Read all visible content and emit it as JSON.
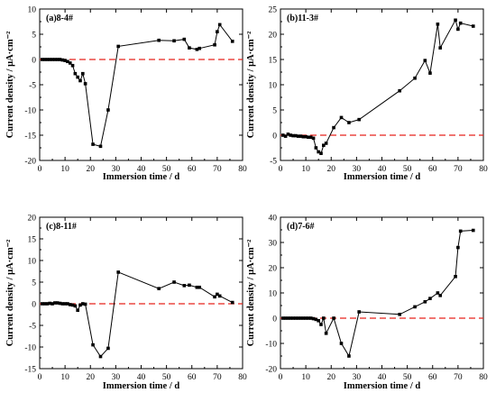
{
  "chart_data": [
    {
      "type": "line",
      "panel_label": "(a)8-4#",
      "xlabel": "Immersion time / d",
      "ylabel": "Current density / μA·cm⁻²",
      "xlim": [
        0,
        80
      ],
      "ylim": [
        -20,
        10
      ],
      "xticks": [
        0,
        10,
        20,
        30,
        40,
        50,
        60,
        70,
        80
      ],
      "yticks": [
        -20,
        -15,
        -10,
        -5,
        0,
        5,
        10
      ],
      "reference_line": {
        "y": 0,
        "color": "#e8231c",
        "style": "dashed"
      },
      "series": [
        {
          "color": "#000000",
          "marker": "square",
          "x": [
            1,
            2,
            3,
            4,
            5,
            6,
            7,
            8,
            9,
            10,
            11,
            12,
            13,
            14,
            15,
            16,
            17,
            18,
            21,
            24,
            27,
            31,
            47,
            53,
            57,
            59,
            62,
            63,
            69,
            70,
            71,
            76
          ],
          "y": [
            0,
            0,
            0,
            0,
            0,
            0,
            0,
            0,
            -0.1,
            -0.2,
            -0.4,
            -0.7,
            -1.2,
            -2.8,
            -3.5,
            -4.2,
            -2.8,
            -4.8,
            -16.8,
            -17.2,
            -10,
            2.6,
            3.8,
            3.7,
            4.0,
            2.3,
            2.0,
            2.2,
            2.9,
            5.5,
            6.9,
            3.6
          ]
        }
      ]
    },
    {
      "type": "line",
      "panel_label": "(b)11-3#",
      "xlabel": "Immersion time / d",
      "ylabel": "Current density / μA·cm⁻²",
      "xlim": [
        0,
        80
      ],
      "ylim": [
        -5,
        25
      ],
      "xticks": [
        0,
        10,
        20,
        30,
        40,
        50,
        60,
        70,
        80
      ],
      "yticks": [
        -5,
        0,
        5,
        10,
        15,
        20,
        25
      ],
      "reference_line": {
        "y": 0,
        "color": "#e8231c",
        "style": "dashed"
      },
      "series": [
        {
          "color": "#000000",
          "marker": "square",
          "x": [
            1,
            2,
            3,
            4,
            5,
            6,
            7,
            8,
            9,
            10,
            11,
            12,
            13,
            14,
            15,
            16,
            17,
            18,
            21,
            24,
            27,
            31,
            47,
            53,
            57,
            59,
            62,
            63,
            69,
            70,
            71,
            76
          ],
          "y": [
            0,
            -0.2,
            0.2,
            0,
            -0.1,
            -0.1,
            -0.2,
            -0.2,
            -0.3,
            -0.3,
            -0.4,
            -0.4,
            -0.6,
            -2.5,
            -3.3,
            -3.6,
            -2,
            -1.6,
            1.5,
            3.5,
            2.5,
            3.1,
            8.8,
            11.3,
            14.8,
            12.3,
            22,
            17.3,
            22.8,
            21,
            22.2,
            21.6
          ]
        }
      ]
    },
    {
      "type": "line",
      "panel_label": "(c)8-11#",
      "xlabel": "Immersion time / d",
      "ylabel": "Current density / μA·cm⁻²",
      "xlim": [
        0,
        80
      ],
      "ylim": [
        -15,
        20
      ],
      "xticks": [
        0,
        10,
        20,
        30,
        40,
        50,
        60,
        70,
        80
      ],
      "yticks": [
        -15,
        -10,
        -5,
        0,
        5,
        10,
        15,
        20
      ],
      "reference_line": {
        "y": 0,
        "color": "#e8231c",
        "style": "dashed"
      },
      "series": [
        {
          "color": "#000000",
          "marker": "square",
          "x": [
            1,
            2,
            3,
            4,
            5,
            6,
            7,
            8,
            9,
            10,
            11,
            12,
            13,
            14,
            15,
            16,
            17,
            18,
            21,
            24,
            27,
            31,
            47,
            53,
            57,
            59,
            62,
            63,
            69,
            70,
            71,
            76
          ],
          "y": [
            0,
            0,
            0,
            0.1,
            0,
            0.2,
            0.2,
            0.1,
            0,
            0,
            0,
            -0.2,
            -0.3,
            -0.5,
            -1.5,
            -0.3,
            0,
            -0.1,
            -9.5,
            -12.2,
            -10.3,
            7.3,
            3.5,
            5.0,
            4.2,
            4.3,
            3.8,
            3.8,
            1.6,
            2.2,
            1.8,
            0.3
          ]
        }
      ]
    },
    {
      "type": "line",
      "panel_label": "(d)7-6#",
      "xlabel": "Immersion time / d",
      "ylabel": "Current density / μA·cm⁻²",
      "xlim": [
        0,
        80
      ],
      "ylim": [
        -20,
        40
      ],
      "xticks": [
        0,
        10,
        20,
        30,
        40,
        50,
        60,
        70,
        80
      ],
      "yticks": [
        -20,
        -10,
        0,
        10,
        20,
        30,
        40
      ],
      "reference_line": {
        "y": 0,
        "color": "#e8231c",
        "style": "dashed"
      },
      "series": [
        {
          "color": "#000000",
          "marker": "square",
          "x": [
            1,
            2,
            3,
            4,
            5,
            6,
            7,
            8,
            9,
            10,
            11,
            12,
            13,
            14,
            15,
            16,
            17,
            18,
            21,
            24,
            27,
            31,
            47,
            53,
            57,
            59,
            62,
            63,
            69,
            70,
            71,
            76
          ],
          "y": [
            0,
            0,
            0,
            0,
            0,
            0,
            0,
            0,
            0,
            0,
            0,
            0,
            -0.2,
            -0.5,
            -1,
            -2.5,
            0,
            -6,
            0,
            -10,
            -15,
            2.5,
            1.5,
            4.5,
            6.5,
            7.8,
            10,
            9,
            16.5,
            28,
            34.5,
            34.8
          ]
        }
      ]
    }
  ]
}
